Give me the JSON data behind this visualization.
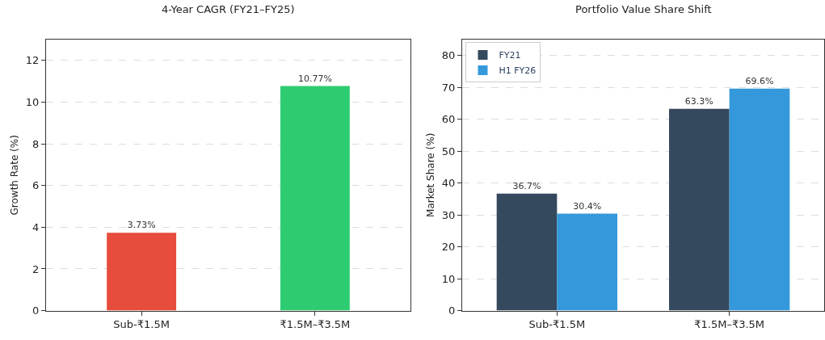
{
  "chart_data": [
    {
      "type": "bar",
      "title": "4-Year CAGR (FY21–FY25)",
      "ylabel": "Growth Rate (%)",
      "categories": [
        "Sub-₹1.5M",
        "₹1.5M–₹3.5M"
      ],
      "values": [
        3.73,
        10.77
      ],
      "colors": [
        "#e74c3c",
        "#2ecc71"
      ],
      "value_labels": [
        "3.73%",
        "10.77%"
      ],
      "ylim": [
        0,
        13
      ],
      "yticks": [
        0,
        2,
        4,
        6,
        8,
        10,
        12
      ],
      "grid": "y"
    },
    {
      "type": "bar",
      "title": "Portfolio Value Share Shift",
      "ylabel": "Market Share (%)",
      "categories": [
        "Sub-₹1.5M",
        "₹1.5M–₹3.5M"
      ],
      "series": [
        {
          "name": "FY21",
          "color": "#34495e",
          "values": [
            36.7,
            63.3
          ],
          "value_labels": [
            "36.7%",
            "63.3%"
          ]
        },
        {
          "name": "H1 FY26",
          "color": "#3498db",
          "values": [
            30.4,
            69.6
          ],
          "value_labels": [
            "30.4%",
            "69.6%"
          ]
        }
      ],
      "ylim": [
        0,
        85
      ],
      "yticks": [
        0,
        10,
        20,
        30,
        40,
        50,
        60,
        70,
        80
      ],
      "grid": "y",
      "legend": "top left"
    }
  ]
}
